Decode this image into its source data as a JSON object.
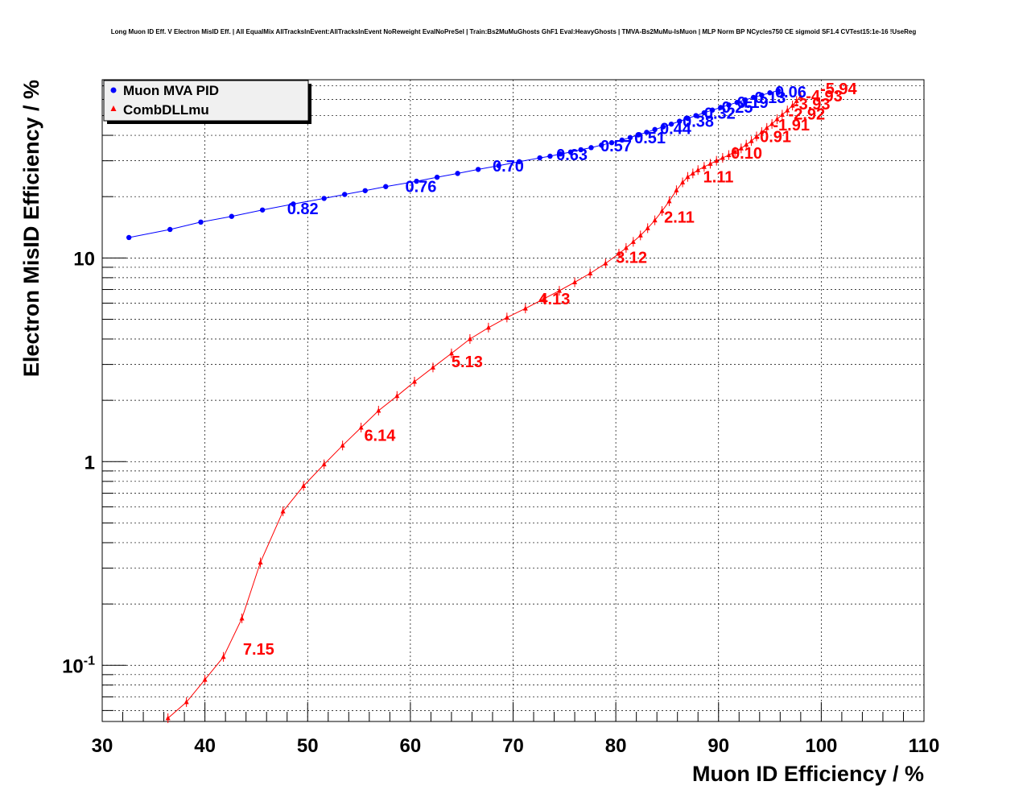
{
  "chart_data": {
    "type": "scatter",
    "title": "Long Muon ID Eff. V Electron MisID Eff. | All EqualMix AllTracksInEvent:AllTracksInEvent NoReweight EvalNoPreSel | Train:Bs2MuMuGhosts GhF1 Eval:HeavyGhosts | TMVA-Bs2MuMu-IsMuon | MLP Norm BP NCycles750 CE sigmoid SF1.4 CVTest15:1e-16 !UseReg",
    "xlabel": "Muon ID Efficiency / %",
    "ylabel": "Electron MisID Efficiency / %",
    "xlim": [
      30,
      110
    ],
    "ylim": [
      0.053,
      75
    ],
    "y_scale": "log",
    "grid": true,
    "legend_position": "top-left",
    "x_ticks": [
      30,
      40,
      50,
      60,
      70,
      80,
      90,
      100,
      110
    ],
    "y_ticks": [
      {
        "value": 0.1,
        "base": "10",
        "exp": "-1"
      },
      {
        "value": 1,
        "base": "1",
        "exp": ""
      },
      {
        "value": 10,
        "base": "10",
        "exp": ""
      }
    ],
    "series": [
      {
        "name": "Muon MVA PID",
        "color": "#0000ff",
        "marker": "circle",
        "points": [
          [
            32.6,
            12.6
          ],
          [
            36.6,
            13.8
          ],
          [
            39.6,
            15.0
          ],
          [
            42.6,
            16.0
          ],
          [
            45.6,
            17.2
          ],
          [
            48.6,
            18.4
          ],
          [
            51.6,
            19.6
          ],
          [
            53.6,
            20.5
          ],
          [
            55.6,
            21.4
          ],
          [
            57.6,
            22.4
          ],
          [
            60.6,
            23.8
          ],
          [
            62.6,
            24.9
          ],
          [
            64.6,
            26.0
          ],
          [
            66.6,
            27.2
          ],
          [
            68.6,
            28.4
          ],
          [
            70.6,
            29.7
          ],
          [
            72.6,
            31.0
          ],
          [
            73.6,
            31.6
          ],
          [
            74.6,
            32.4
          ],
          [
            75.6,
            33.1
          ],
          [
            76.6,
            34.0
          ],
          [
            77.6,
            34.8
          ],
          [
            78.6,
            35.8
          ],
          [
            79.6,
            36.8
          ],
          [
            80.6,
            37.9
          ],
          [
            81.4,
            39.0
          ],
          [
            82.2,
            40.2
          ],
          [
            83.0,
            41.4
          ],
          [
            83.8,
            42.7
          ],
          [
            84.6,
            44.0
          ],
          [
            85.4,
            45.4
          ],
          [
            86.2,
            46.9
          ],
          [
            87.0,
            48.4
          ],
          [
            87.8,
            50.0
          ],
          [
            88.6,
            51.6
          ],
          [
            89.4,
            53.2
          ],
          [
            90.2,
            54.8
          ],
          [
            91.0,
            56.4
          ],
          [
            91.8,
            58.0
          ],
          [
            92.6,
            59.7
          ],
          [
            93.4,
            61.4
          ],
          [
            94.2,
            63.0
          ],
          [
            95.0,
            64.7
          ],
          [
            95.8,
            66.3
          ]
        ],
        "labels": [
          {
            "text": "0.82",
            "x": 48.0,
            "y": 17.5
          },
          {
            "text": "0.76",
            "x": 59.5,
            "y": 22.5
          },
          {
            "text": "0.70",
            "x": 68.0,
            "y": 28.3
          },
          {
            "text": "0.63",
            "x": 74.2,
            "y": 32.1
          },
          {
            "text": "0.57",
            "x": 78.5,
            "y": 35.6
          },
          {
            "text": "0.51",
            "x": 81.8,
            "y": 39.0
          },
          {
            "text": "0.44",
            "x": 84.3,
            "y": 43.3
          },
          {
            "text": "0.38",
            "x": 86.5,
            "y": 47.0
          },
          {
            "text": "0.32",
            "x": 88.6,
            "y": 51.3
          },
          {
            "text": "0.25",
            "x": 90.3,
            "y": 55.1
          },
          {
            "text": "0.19",
            "x": 91.8,
            "y": 58.0
          },
          {
            "text": "0.13",
            "x": 93.5,
            "y": 61.5
          },
          {
            "text": "0.06",
            "x": 95.5,
            "y": 65.5
          }
        ]
      },
      {
        "name": "CombDLLmu",
        "color": "#ff0000",
        "marker": "triangle",
        "points": [
          [
            36.4,
            0.055
          ],
          [
            38.2,
            0.066
          ],
          [
            40.0,
            0.085
          ],
          [
            41.8,
            0.11
          ],
          [
            43.6,
            0.17
          ],
          [
            45.4,
            0.32
          ],
          [
            47.6,
            0.57
          ],
          [
            49.6,
            0.76
          ],
          [
            51.6,
            0.97
          ],
          [
            53.4,
            1.2
          ],
          [
            55.2,
            1.47
          ],
          [
            56.9,
            1.78
          ],
          [
            58.7,
            2.1
          ],
          [
            60.4,
            2.47
          ],
          [
            62.2,
            2.9
          ],
          [
            64.0,
            3.4
          ],
          [
            65.8,
            4.0
          ],
          [
            67.6,
            4.55
          ],
          [
            69.4,
            5.1
          ],
          [
            71.2,
            5.65
          ],
          [
            73.0,
            6.3
          ],
          [
            74.5,
            6.9
          ],
          [
            76.0,
            7.6
          ],
          [
            77.5,
            8.4
          ],
          [
            79.0,
            9.4
          ],
          [
            80.3,
            10.5
          ],
          [
            81.0,
            11.2
          ],
          [
            81.7,
            12.0
          ],
          [
            82.4,
            12.9
          ],
          [
            83.1,
            14.0
          ],
          [
            83.8,
            15.3
          ],
          [
            84.5,
            17.0
          ],
          [
            85.2,
            19.0
          ],
          [
            85.9,
            21.5
          ],
          [
            86.5,
            23.5
          ],
          [
            87.0,
            25.0
          ],
          [
            87.5,
            26.0
          ],
          [
            88.0,
            27.0
          ],
          [
            88.6,
            28.0
          ],
          [
            89.2,
            29.0
          ],
          [
            89.8,
            30.0
          ],
          [
            90.4,
            31.0
          ],
          [
            91.0,
            32.0
          ],
          [
            91.6,
            33.2
          ],
          [
            92.2,
            34.5
          ],
          [
            92.7,
            36.0
          ],
          [
            93.2,
            37.5
          ],
          [
            93.7,
            39.5
          ],
          [
            94.2,
            41.5
          ],
          [
            94.7,
            43.5
          ],
          [
            95.2,
            45.5
          ],
          [
            95.7,
            48.0
          ],
          [
            96.2,
            50.5
          ],
          [
            96.7,
            53.0
          ],
          [
            97.2,
            56.0
          ],
          [
            97.6,
            59.0
          ],
          [
            98.0,
            62.0
          ]
        ],
        "labels": [
          {
            "text": "7.15",
            "x": 43.7,
            "y": 0.12
          },
          {
            "text": "6.14",
            "x": 55.5,
            "y": 1.35
          },
          {
            "text": "5.13",
            "x": 64.0,
            "y": 3.1
          },
          {
            "text": "4.13",
            "x": 72.5,
            "y": 6.3
          },
          {
            "text": "3.12",
            "x": 80.0,
            "y": 10.1
          },
          {
            "text": "2.11",
            "x": 84.7,
            "y": 15.9
          },
          {
            "text": "1.11",
            "x": 88.5,
            "y": 25.0
          },
          {
            "text": "0.10",
            "x": 91.2,
            "y": 32.7
          },
          {
            "text": "-0.91",
            "x": 93.5,
            "y": 39.5
          },
          {
            "text": "-1.91",
            "x": 95.3,
            "y": 45.0
          },
          {
            "text": "-2.92",
            "x": 96.8,
            "y": 51.0
          },
          {
            "text": "-3.93",
            "x": 97.3,
            "y": 57.2
          },
          {
            "text": "-4.93",
            "x": 98.5,
            "y": 62.5
          },
          {
            "text": "-5.94",
            "x": 99.9,
            "y": 68.0
          }
        ]
      }
    ]
  }
}
